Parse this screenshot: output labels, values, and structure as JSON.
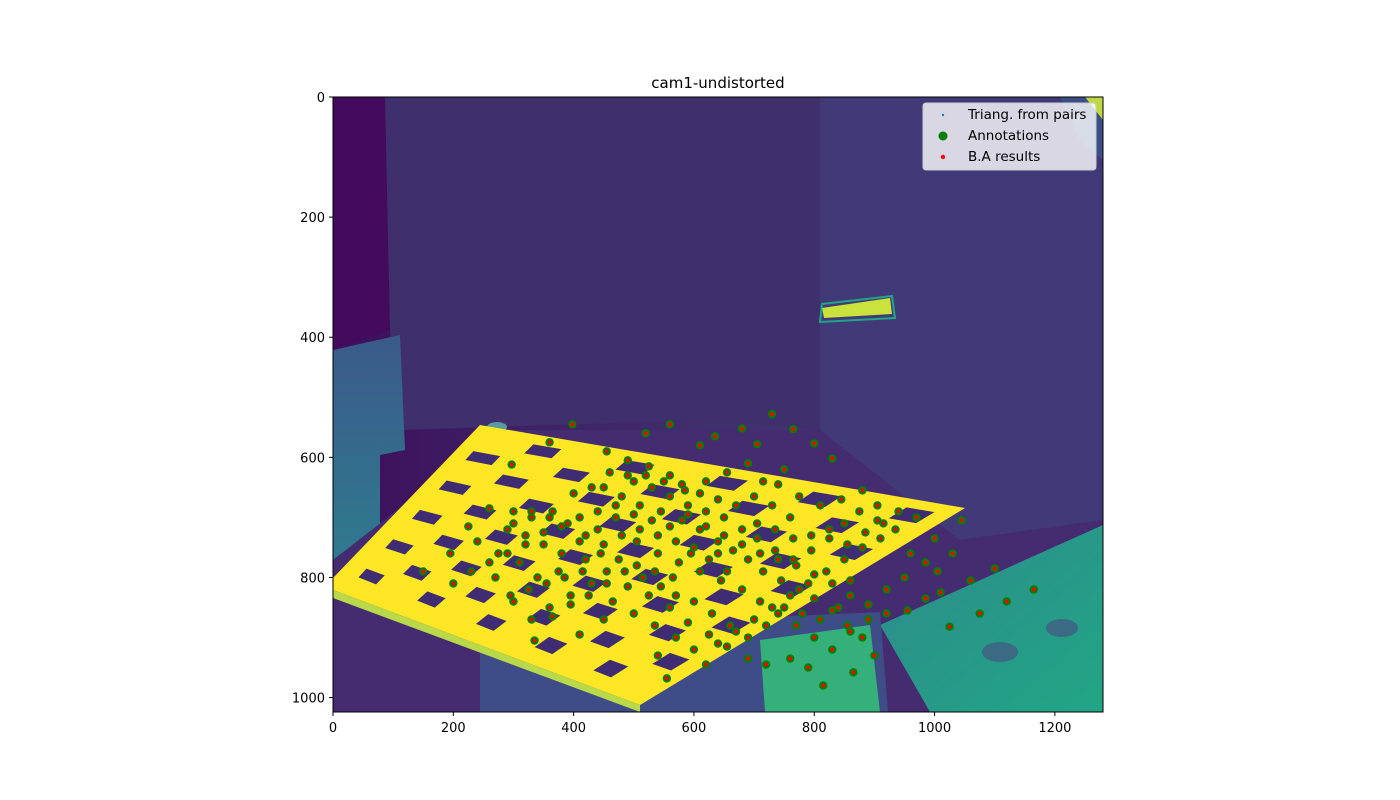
{
  "chart_data": {
    "type": "scatter",
    "title": "cam1-undistorted",
    "xlabel": "",
    "ylabel": "",
    "xlim": [
      0,
      1280
    ],
    "ylim": [
      1024,
      0
    ],
    "y_axis_inverted": true,
    "background": "image: viridis-colormap camera frame of a checkerboard calibration target on a table",
    "xticks": [
      0,
      200,
      400,
      600,
      800,
      1000,
      1200
    ],
    "yticks": [
      0,
      200,
      400,
      600,
      800,
      1000
    ],
    "legend": {
      "placement": "top-right",
      "entries": [
        "Triang. from pairs",
        "Annotations",
        "B.A results"
      ]
    },
    "series": [
      {
        "name": "Triang. from pairs",
        "color": "#1f77b4",
        "marker": "small-dot",
        "note": "hidden beneath annotation markers"
      },
      {
        "name": "Annotations",
        "color": "#008000",
        "marker": "circle",
        "points": [
          [
            297,
            612
          ],
          [
            360,
            575
          ],
          [
            398,
            545
          ],
          [
            455,
            590
          ],
          [
            520,
            560
          ],
          [
            560,
            545
          ],
          [
            610,
            580
          ],
          [
            635,
            565
          ],
          [
            680,
            552
          ],
          [
            705,
            578
          ],
          [
            730,
            528
          ],
          [
            765,
            553
          ],
          [
            800,
            577
          ],
          [
            830,
            602
          ],
          [
            750,
            620
          ],
          [
            715,
            640
          ],
          [
            690,
            610
          ],
          [
            655,
            625
          ],
          [
            620,
            640
          ],
          [
            585,
            655
          ],
          [
            560,
            630
          ],
          [
            525,
            615
          ],
          [
            490,
            605
          ],
          [
            460,
            625
          ],
          [
            430,
            650
          ],
          [
            400,
            660
          ],
          [
            365,
            690
          ],
          [
            330,
            700
          ],
          [
            300,
            690
          ],
          [
            260,
            685
          ],
          [
            225,
            715
          ],
          [
            195,
            760
          ],
          [
            240,
            740
          ],
          [
            275,
            760
          ],
          [
            310,
            775
          ],
          [
            340,
            800
          ],
          [
            375,
            790
          ],
          [
            420,
            770
          ],
          [
            455,
            790
          ],
          [
            490,
            815
          ],
          [
            525,
            830
          ],
          [
            560,
            850
          ],
          [
            590,
            875
          ],
          [
            625,
            895
          ],
          [
            655,
            915
          ],
          [
            690,
            935
          ],
          [
            720,
            945
          ],
          [
            760,
            935
          ],
          [
            790,
            950
          ],
          [
            815,
            980
          ],
          [
            865,
            958
          ],
          [
            900,
            930
          ],
          [
            880,
            900
          ],
          [
            855,
            880
          ],
          [
            830,
            855
          ],
          [
            800,
            835
          ],
          [
            775,
            820
          ],
          [
            745,
            805
          ],
          [
            715,
            790
          ],
          [
            690,
            770
          ],
          [
            665,
            755
          ],
          [
            640,
            740
          ],
          [
            610,
            720
          ],
          [
            580,
            705
          ],
          [
            545,
            690
          ],
          [
            510,
            680
          ],
          [
            480,
            665
          ],
          [
            450,
            650
          ],
          [
            505,
            740
          ],
          [
            540,
            760
          ],
          [
            575,
            775
          ],
          [
            610,
            790
          ],
          [
            645,
            805
          ],
          [
            680,
            820
          ],
          [
            710,
            840
          ],
          [
            740,
            860
          ],
          [
            770,
            880
          ],
          [
            800,
            900
          ],
          [
            830,
            920
          ],
          [
            860,
            890
          ],
          [
            890,
            870
          ],
          [
            920,
            860
          ],
          [
            955,
            855
          ],
          [
            985,
            835
          ],
          [
            1010,
            825
          ],
          [
            1060,
            805
          ],
          [
            1075,
            860
          ],
          [
            1100,
            785
          ],
          [
            1120,
            840
          ],
          [
            1165,
            820
          ],
          [
            1025,
            882
          ],
          [
            1030,
            760
          ],
          [
            1045,
            705
          ],
          [
            1000,
            735
          ],
          [
            970,
            700
          ],
          [
            940,
            690
          ],
          [
            905,
            680
          ],
          [
            875,
            690
          ],
          [
            850,
            710
          ],
          [
            825,
            735
          ],
          [
            795,
            755
          ],
          [
            765,
            770
          ],
          [
            735,
            755
          ],
          [
            705,
            735
          ],
          [
            680,
            720
          ],
          [
            650,
            700
          ],
          [
            620,
            690
          ],
          [
            590,
            680
          ],
          [
            560,
            665
          ],
          [
            530,
            650
          ],
          [
            500,
            640
          ],
          [
            470,
            700
          ],
          [
            440,
            720
          ],
          [
            410,
            740
          ],
          [
            380,
            760
          ],
          [
            350,
            745
          ],
          [
            320,
            730
          ],
          [
            290,
            720
          ],
          [
            270,
            800
          ],
          [
            300,
            840
          ],
          [
            330,
            870
          ],
          [
            360,
            850
          ],
          [
            395,
            830
          ],
          [
            430,
            810
          ],
          [
            465,
            840
          ],
          [
            500,
            860
          ],
          [
            535,
            880
          ],
          [
            570,
            900
          ],
          [
            600,
            920
          ],
          [
            640,
            910
          ],
          [
            670,
            890
          ],
          [
            700,
            870
          ],
          [
            730,
            850
          ],
          [
            760,
            830
          ],
          [
            790,
            810
          ],
          [
            820,
            790
          ],
          [
            850,
            770
          ],
          [
            880,
            750
          ],
          [
            910,
            735
          ],
          [
            935,
            720
          ],
          [
            960,
            760
          ],
          [
            985,
            775
          ],
          [
            1005,
            790
          ],
          [
            950,
            800
          ],
          [
            920,
            820
          ],
          [
            890,
            845
          ],
          [
            860,
            830
          ],
          [
            830,
            810
          ],
          [
            800,
            795
          ],
          [
            770,
            780
          ],
          [
            740,
            770
          ],
          [
            710,
            760
          ],
          [
            680,
            745
          ],
          [
            650,
            730
          ],
          [
            620,
            715
          ],
          [
            590,
            695
          ],
          [
            560,
            715
          ],
          [
            530,
            705
          ],
          [
            500,
            695
          ],
          [
            470,
            680
          ],
          [
            440,
            690
          ],
          [
            410,
            700
          ],
          [
            380,
            715
          ],
          [
            350,
            725
          ],
          [
            320,
            745
          ],
          [
            290,
            760
          ],
          [
            260,
            775
          ],
          [
            230,
            790
          ],
          [
            200,
            810
          ],
          [
            150,
            790
          ],
          [
            335,
            905
          ],
          [
            410,
            895
          ],
          [
            450,
            870
          ],
          [
            540,
            930
          ],
          [
            555,
            968
          ],
          [
            620,
            945
          ],
          [
            740,
            645
          ],
          [
            775,
            665
          ],
          [
            810,
            680
          ],
          [
            845,
            670
          ],
          [
            880,
            655
          ],
          [
            905,
            705
          ],
          [
            760,
            700
          ],
          [
            730,
            680
          ],
          [
            700,
            665
          ],
          [
            670,
            680
          ],
          [
            640,
            670
          ],
          [
            610,
            660
          ],
          [
            580,
            645
          ],
          [
            550,
            640
          ],
          [
            520,
            630
          ],
          [
            490,
            630
          ],
          [
            640,
            760
          ],
          [
            600,
            750
          ],
          [
            570,
            740
          ],
          [
            540,
            730
          ],
          [
            510,
            720
          ],
          [
            480,
            730
          ],
          [
            450,
            745
          ],
          [
            420,
            730
          ],
          [
            390,
            710
          ],
          [
            360,
            700
          ],
          [
            330,
            690
          ],
          [
            300,
            710
          ],
          [
            655,
            790
          ],
          [
            625,
            770
          ],
          [
            595,
            760
          ],
          [
            565,
            800
          ],
          [
            535,
            790
          ],
          [
            505,
            780
          ],
          [
            475,
            770
          ],
          [
            445,
            760
          ],
          [
            415,
            790
          ],
          [
            385,
            800
          ],
          [
            355,
            810
          ],
          [
            325,
            820
          ],
          [
            295,
            830
          ],
          [
            705,
            710
          ],
          [
            735,
            720
          ],
          [
            765,
            735
          ],
          [
            795,
            730
          ],
          [
            825,
            720
          ],
          [
            855,
            745
          ],
          [
            885,
            725
          ],
          [
            915,
            710
          ],
          [
            860,
            805
          ],
          [
            840,
            850
          ],
          [
            810,
            870
          ],
          [
            780,
            860
          ],
          [
            750,
            850
          ],
          [
            720,
            880
          ],
          [
            690,
            900
          ],
          [
            660,
            880
          ],
          [
            630,
            860
          ],
          [
            600,
            840
          ],
          [
            570,
            830
          ],
          [
            545,
            815
          ],
          [
            515,
            800
          ],
          [
            485,
            790
          ],
          [
            455,
            810
          ],
          [
            425,
            830
          ],
          [
            395,
            845
          ],
          [
            365,
            865
          ]
        ]
      },
      {
        "name": "B.A results",
        "color": "#ff0000",
        "marker": "small-dot",
        "note": "drawn at annotation positions"
      }
    ],
    "grid": false
  }
}
